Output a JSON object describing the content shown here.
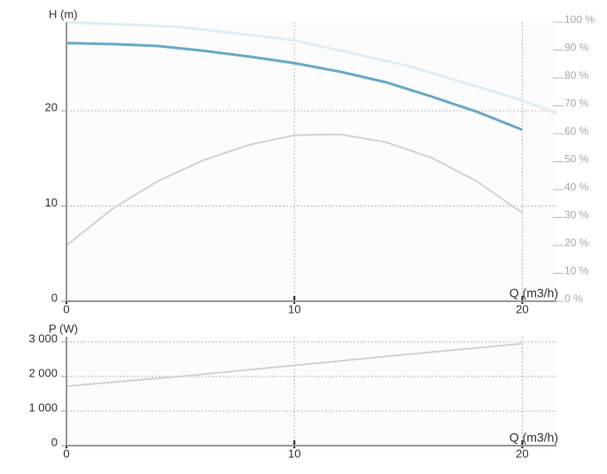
{
  "chart_data": [
    {
      "type": "line",
      "y_label": "H (m)",
      "x_label": "Q (m3/h)",
      "xlim": [
        0,
        21.5
      ],
      "xticks": [
        0,
        10,
        20
      ],
      "ylim": [
        0,
        29.3
      ],
      "yticks": [
        0,
        10,
        20
      ],
      "y2lim": [
        0,
        100
      ],
      "y2ticks": [
        {
          "value": 0,
          "label": "0 %"
        },
        {
          "value": 10,
          "label": "10 %"
        },
        {
          "value": 20,
          "label": "20 %"
        },
        {
          "value": 30,
          "label": "30 %"
        },
        {
          "value": 40,
          "label": "40 %"
        },
        {
          "value": 50,
          "label": "50 %"
        },
        {
          "value": 60,
          "label": "60 %"
        },
        {
          "value": 70,
          "label": "70 %"
        },
        {
          "value": 80,
          "label": "80 %"
        },
        {
          "value": 90,
          "label": "90 %"
        },
        {
          "value": 100,
          "label": "100 %"
        }
      ],
      "grid": true,
      "series": [
        {
          "color": "#deedf5",
          "width": 3,
          "x": [
            0,
            5,
            10,
            15,
            20,
            21.5
          ],
          "values": [
            29.3,
            28.8,
            27.4,
            24.7,
            21.1,
            19.7
          ]
        },
        {
          "color": "#6aaac6",
          "width": 3,
          "x": [
            0,
            2,
            4,
            6,
            8,
            10,
            12,
            14,
            16,
            18,
            20
          ],
          "values": [
            27.1,
            27.0,
            26.8,
            26.3,
            25.7,
            25.0,
            24.1,
            23.0,
            21.5,
            19.9,
            18.0
          ]
        },
        {
          "color": "#d2d2d2",
          "width": 2,
          "axis": "y2",
          "x": [
            0,
            2,
            4,
            6,
            8,
            10,
            12,
            14,
            16,
            18,
            20
          ],
          "values": [
            20,
            33,
            43,
            50.5,
            56,
            59.5,
            59.8,
            57,
            51.5,
            43,
            31.7
          ]
        }
      ]
    },
    {
      "type": "line",
      "y_label": "P (W)",
      "x_label": "Q (m3/h)",
      "xlim": [
        0,
        21.5
      ],
      "xticks": [
        0,
        10,
        20
      ],
      "ylim": [
        0,
        3150
      ],
      "yticks": [
        0,
        {
          "value": 1000,
          "label": "1 000"
        },
        {
          "value": 2000,
          "label": "2 000"
        },
        {
          "value": 3000,
          "label": "3 000"
        }
      ],
      "grid": true,
      "series": [
        {
          "color": "#d2d2d2",
          "width": 2,
          "x": [
            0,
            5,
            10,
            15,
            20
          ],
          "values": [
            1720,
            2000,
            2320,
            2640,
            2950
          ]
        }
      ]
    }
  ]
}
